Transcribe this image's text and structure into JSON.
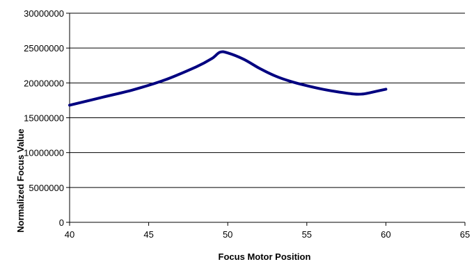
{
  "chart_data": {
    "type": "line",
    "title": "",
    "xlabel": "Focus Motor Position",
    "ylabel": "Normalized Focus Value",
    "xlim": [
      40,
      65
    ],
    "ylim": [
      0,
      30000000
    ],
    "x_ticks": [
      40,
      45,
      50,
      55,
      60,
      65
    ],
    "y_ticks": [
      0,
      5000000,
      10000000,
      15000000,
      20000000,
      25000000,
      30000000
    ],
    "x_tick_labels": [
      "40",
      "45",
      "50",
      "55",
      "60",
      "65"
    ],
    "y_tick_labels": [
      "0",
      "5000000",
      "10000000",
      "15000000",
      "20000000",
      "25000000",
      "30000000"
    ],
    "grid": "horizontal",
    "legend": "none",
    "series": [
      {
        "color": "#000080",
        "x": [
          40,
          42,
          44,
          46,
          48,
          49,
          49.5,
          50,
          51,
          52,
          53,
          54,
          55,
          56,
          57,
          58,
          58.5,
          59,
          60
        ],
        "y": [
          16800000,
          17900000,
          19000000,
          20400000,
          22300000,
          23500000,
          24400000,
          24300000,
          23400000,
          22100000,
          21000000,
          20200000,
          19600000,
          19100000,
          18700000,
          18400000,
          18400000,
          18600000,
          19100000
        ]
      }
    ]
  }
}
